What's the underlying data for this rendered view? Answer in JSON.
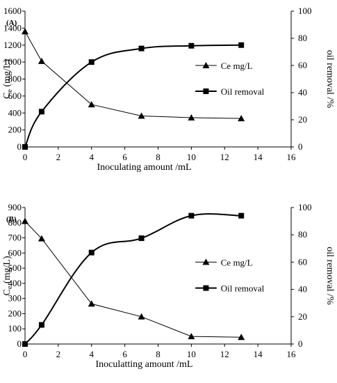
{
  "chart_data": [
    {
      "type": "line",
      "panel_label": "(A)",
      "xlabel": "Inoculating amount  /mL",
      "ylabel_left_main": "C",
      "ylabel_left_sub": "e",
      "ylabel_left_unit": " (mg/L)",
      "ylabel_right": "oil removal /%",
      "xlim": [
        0,
        16
      ],
      "ylim_left": [
        0,
        1600
      ],
      "ylim_right": [
        0,
        100
      ],
      "x_ticks": [
        "0",
        "2",
        "4",
        "6",
        "8",
        "10",
        "12",
        "14",
        "16"
      ],
      "y_left_ticks": [
        "0",
        "200",
        "400",
        "600",
        "800",
        "1000",
        "1200",
        "1400",
        "1600"
      ],
      "y_right_ticks": [
        "0",
        "20",
        "40",
        "60",
        "80",
        "100"
      ],
      "legend_placement": "right-middle",
      "series": [
        {
          "name": "Ce mg/L",
          "axis": "left",
          "marker": "triangle",
          "x": [
            0,
            1,
            4,
            7,
            10,
            13
          ],
          "y": [
            1360,
            1010,
            500,
            365,
            345,
            335
          ]
        },
        {
          "name": "Oil removal",
          "axis": "right",
          "marker": "square",
          "x": [
            0,
            1,
            4,
            7,
            10,
            13
          ],
          "y": [
            0,
            26,
            62.5,
            72.5,
            74.5,
            75
          ]
        }
      ]
    },
    {
      "type": "line",
      "panel_label": "(B)",
      "xlabel": "Inoculatting amount  /mL",
      "ylabel_left_main": "C",
      "ylabel_left_sub": "e",
      "ylabel_left_unit": " (mg/L)",
      "ylabel_right": "oil removal /%",
      "xlim": [
        0,
        16
      ],
      "ylim_left": [
        0,
        900
      ],
      "ylim_right": [
        0,
        100
      ],
      "x_ticks": [
        "0",
        "2",
        "4",
        "6",
        "8",
        "10",
        "12",
        "14",
        "16"
      ],
      "y_left_ticks": [
        "0",
        "100",
        "200",
        "300",
        "400",
        "500",
        "600",
        "700",
        "800",
        "900"
      ],
      "y_right_ticks": [
        "0",
        "20",
        "40",
        "60",
        "80",
        "100"
      ],
      "legend_placement": "right-middle",
      "series": [
        {
          "name": "Ce mg/L",
          "axis": "left",
          "marker": "triangle",
          "x": [
            0,
            1,
            4,
            7,
            10,
            13
          ],
          "y": [
            810,
            695,
            265,
            180,
            50,
            45
          ]
        },
        {
          "name": "Oil removal",
          "axis": "right",
          "marker": "square",
          "x": [
            0,
            1,
            4,
            7,
            10,
            13
          ],
          "y": [
            0,
            14,
            67,
            77.5,
            94,
            94
          ]
        }
      ]
    }
  ]
}
